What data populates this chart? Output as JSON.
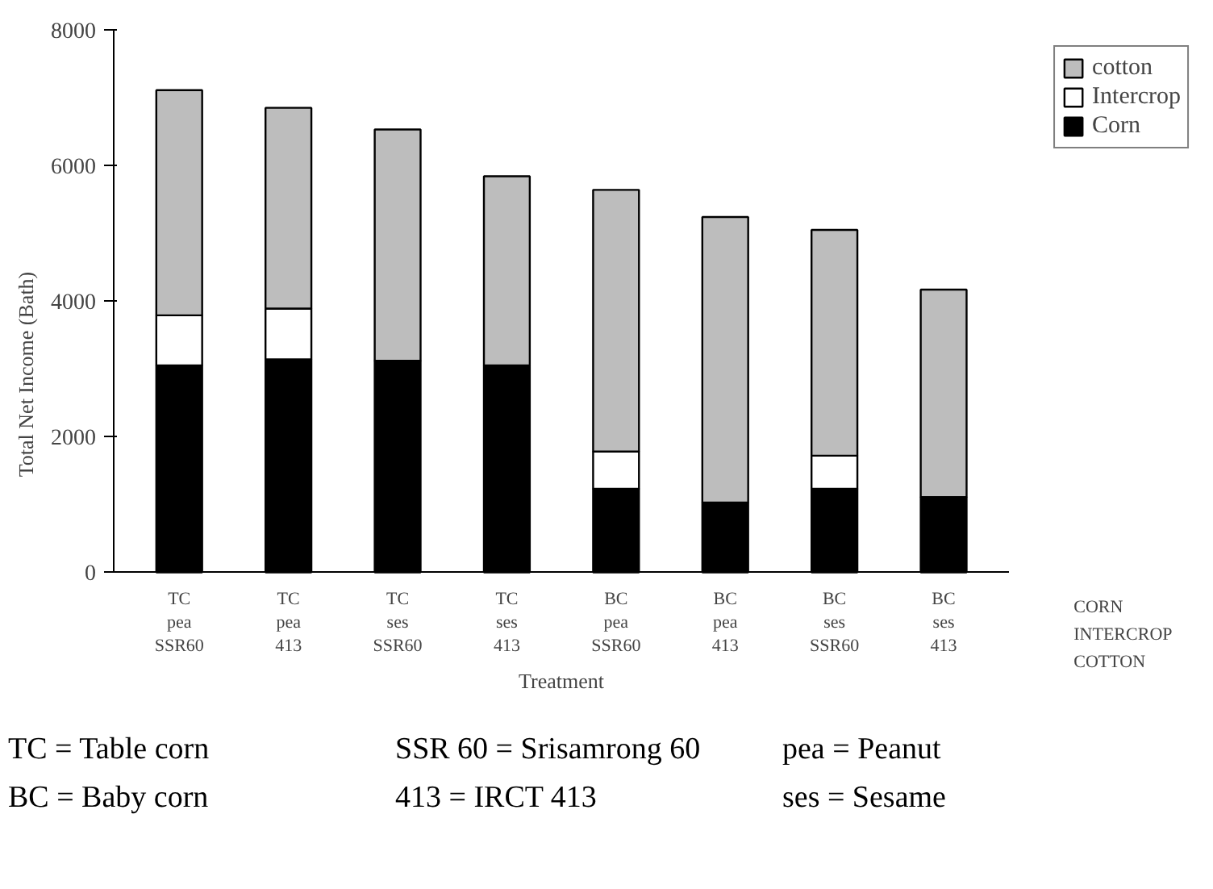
{
  "chart_data": {
    "type": "bar",
    "stacked": true,
    "xlabel": "Treatment",
    "ylabel": "Total Net Income (Bath)",
    "categories": [
      "TC\npea\nSSR60",
      "TC\npea\n413",
      "TC\nses\nSSR60",
      "TC\nses\n413",
      "BC\npea\nSSR60",
      "BC\npea\n413",
      "BC\nses\nSSR60",
      "BC\nses\n413"
    ],
    "series": [
      {
        "name": "Corn",
        "color": "#000000",
        "values": [
          3050,
          3140,
          3120,
          3050,
          1230,
          1030,
          1230,
          1110
        ]
      },
      {
        "name": "Intercrop",
        "color": "#ffffff",
        "values": [
          740,
          750,
          0,
          0,
          550,
          0,
          490,
          0
        ]
      },
      {
        "name": "cotton",
        "color": "#bdbdbd",
        "values": [
          3320,
          2960,
          3410,
          2790,
          3860,
          4210,
          3330,
          3060
        ]
      }
    ],
    "ylim": [
      0,
      8000
    ],
    "yticks": [
      0,
      2000,
      4000,
      6000,
      8000
    ],
    "grid": false,
    "legend": "top right",
    "annotations": [
      "CORN",
      "INTERCROP",
      "COTTON",
      "TC = Table corn",
      "SSR 60 = Srisamrong 60",
      "pea = Peanut",
      "BC = Baby corn",
      "413 = IRCT 413",
      "ses = Sesame"
    ]
  }
}
